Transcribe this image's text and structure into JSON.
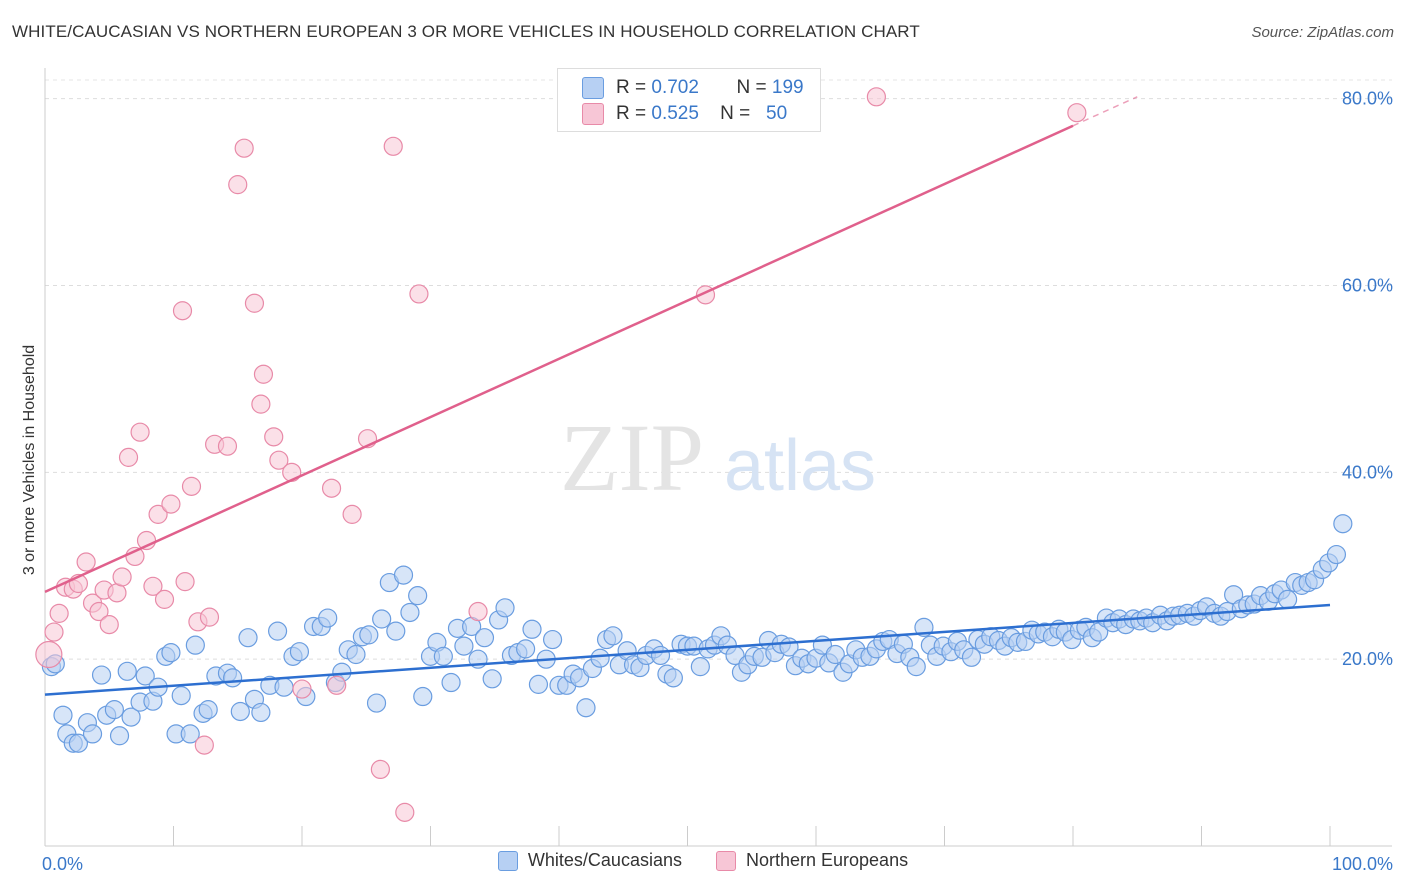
{
  "title": "WHITE/CAUCASIAN VS NORTHERN EUROPEAN 3 OR MORE VEHICLES IN HOUSEHOLD CORRELATION CHART",
  "source": "Source: ZipAtlas.com",
  "watermark": {
    "zip": "ZIP",
    "atlas": "atlas"
  },
  "colors": {
    "blue_fill": "#b7d0f3",
    "blue_stroke": "#6a9de0",
    "blue_line": "#2d6fd0",
    "pink_fill": "#f7c6d6",
    "pink_stroke": "#e88aa8",
    "pink_line": "#e0608c",
    "axis_text": "#3a78c9"
  },
  "stats": {
    "blue": {
      "r_label": "R =",
      "r": "0.702",
      "n_label": "N =",
      "n": "199"
    },
    "pink": {
      "r_label": "R =",
      "r": "0.525",
      "n_label": "N =",
      "n": "50"
    }
  },
  "legend": {
    "blue": "Whites/Caucasians",
    "pink": "Northern Europeans"
  },
  "chart_data": {
    "type": "scatter",
    "title": "WHITE/CAUCASIAN VS NORTHERN EUROPEAN 3 OR MORE VEHICLES IN HOUSEHOLD CORRELATION CHART",
    "xlabel": "",
    "ylabel": "3 or more Vehicles in Household",
    "xlim": [
      0,
      100
    ],
    "ylim": [
      0,
      82
    ],
    "x_ticks": [
      "0.0%",
      "100.0%"
    ],
    "y_ticks": [
      {
        "value": 20,
        "label": "20.0%"
      },
      {
        "value": 40,
        "label": "40.0%"
      },
      {
        "value": 60,
        "label": "60.0%"
      },
      {
        "value": 80,
        "label": "80.0%"
      }
    ],
    "grid": "horizontal dashed",
    "legend_position": "bottom",
    "series": [
      {
        "name": "Whites/Caucasians",
        "trend": {
          "x0": 0,
          "y0": 16.2,
          "x1": 100,
          "y1": 25.8
        },
        "points": [
          [
            0.5,
            19.2
          ],
          [
            0.8,
            19.5
          ],
          [
            1.4,
            14
          ],
          [
            1.7,
            12
          ],
          [
            2.2,
            11
          ],
          [
            2.6,
            11
          ],
          [
            3.3,
            13.2
          ],
          [
            3.7,
            12
          ],
          [
            4.4,
            18.3
          ],
          [
            4.8,
            14
          ],
          [
            5.4,
            14.6
          ],
          [
            5.8,
            11.8
          ],
          [
            6.4,
            18.7
          ],
          [
            6.7,
            13.8
          ],
          [
            7.4,
            15.4
          ],
          [
            7.8,
            18.2
          ],
          [
            8.4,
            15.5
          ],
          [
            8.8,
            17
          ],
          [
            9.4,
            20.3
          ],
          [
            9.8,
            20.7
          ],
          [
            10.2,
            12
          ],
          [
            10.6,
            16.1
          ],
          [
            11.3,
            12
          ],
          [
            11.7,
            21.5
          ],
          [
            12.3,
            14.2
          ],
          [
            12.7,
            14.6
          ],
          [
            13.3,
            18.2
          ],
          [
            14.2,
            18.5
          ],
          [
            14.6,
            18
          ],
          [
            15.2,
            14.4
          ],
          [
            15.8,
            22.3
          ],
          [
            16.3,
            15.7
          ],
          [
            16.8,
            14.3
          ],
          [
            17.5,
            17.2
          ],
          [
            18.1,
            23
          ],
          [
            18.6,
            17
          ],
          [
            19.3,
            20.3
          ],
          [
            19.8,
            20.8
          ],
          [
            20.3,
            16
          ],
          [
            20.9,
            23.5
          ],
          [
            21.5,
            23.5
          ],
          [
            22,
            24.4
          ],
          [
            22.6,
            17.5
          ],
          [
            23.1,
            18.6
          ],
          [
            23.6,
            21
          ],
          [
            24.2,
            20.5
          ],
          [
            24.7,
            22.4
          ],
          [
            25.2,
            22.6
          ],
          [
            25.8,
            15.3
          ],
          [
            26.2,
            24.3
          ],
          [
            26.8,
            28.2
          ],
          [
            27.3,
            23
          ],
          [
            27.9,
            29
          ],
          [
            28.4,
            25
          ],
          [
            29,
            26.8
          ],
          [
            29.4,
            16
          ],
          [
            30,
            20.3
          ],
          [
            30.5,
            21.8
          ],
          [
            31,
            20.3
          ],
          [
            31.6,
            17.5
          ],
          [
            32.1,
            23.3
          ],
          [
            32.6,
            21.4
          ],
          [
            33.2,
            23.5
          ],
          [
            33.7,
            20
          ],
          [
            34.2,
            22.3
          ],
          [
            34.8,
            17.9
          ],
          [
            35.3,
            24.2
          ],
          [
            35.8,
            25.5
          ],
          [
            36.3,
            20.4
          ],
          [
            36.8,
            20.7
          ],
          [
            37.4,
            21.1
          ],
          [
            37.9,
            23.2
          ],
          [
            38.4,
            17.3
          ],
          [
            39,
            20
          ],
          [
            39.5,
            22.1
          ],
          [
            40,
            17.2
          ],
          [
            40.6,
            17.2
          ],
          [
            41.1,
            18.4
          ],
          [
            41.6,
            18
          ],
          [
            42.1,
            14.8
          ],
          [
            42.6,
            19
          ],
          [
            43.2,
            20.1
          ],
          [
            43.7,
            22.1
          ],
          [
            44.2,
            22.5
          ],
          [
            44.7,
            19.4
          ],
          [
            45.3,
            20.9
          ],
          [
            45.8,
            19.4
          ],
          [
            46.3,
            19.1
          ],
          [
            46.8,
            20.4
          ],
          [
            47.4,
            21.1
          ],
          [
            47.9,
            20.4
          ],
          [
            48.4,
            18.4
          ],
          [
            48.9,
            18
          ],
          [
            49.5,
            21.6
          ],
          [
            50,
            21.4
          ],
          [
            50.5,
            21.4
          ],
          [
            51,
            19.2
          ],
          [
            51.6,
            21.1
          ],
          [
            52.1,
            21.5
          ],
          [
            52.6,
            22.5
          ],
          [
            53.1,
            21.5
          ],
          [
            53.7,
            20.4
          ],
          [
            54.2,
            18.6
          ],
          [
            54.7,
            19.4
          ],
          [
            55.2,
            20.3
          ],
          [
            55.8,
            20.2
          ],
          [
            56.3,
            22
          ],
          [
            56.8,
            20.7
          ],
          [
            57.3,
            21.6
          ],
          [
            57.9,
            21.3
          ],
          [
            58.4,
            19.3
          ],
          [
            58.9,
            20.1
          ],
          [
            59.4,
            19.5
          ],
          [
            60,
            20.1
          ],
          [
            60.5,
            21.5
          ],
          [
            61,
            19.6
          ],
          [
            61.5,
            20.5
          ],
          [
            62.1,
            18.6
          ],
          [
            62.6,
            19.5
          ],
          [
            63.1,
            21
          ],
          [
            63.6,
            20.2
          ],
          [
            64.2,
            20.3
          ],
          [
            64.7,
            21.1
          ],
          [
            65.2,
            21.9
          ],
          [
            65.7,
            22.1
          ],
          [
            66.3,
            20.6
          ],
          [
            66.8,
            21.6
          ],
          [
            67.3,
            20.2
          ],
          [
            67.8,
            19.2
          ],
          [
            68.4,
            23.4
          ],
          [
            68.9,
            21.5
          ],
          [
            69.4,
            20.3
          ],
          [
            69.9,
            21.4
          ],
          [
            70.5,
            20.8
          ],
          [
            71,
            21.9
          ],
          [
            71.5,
            21
          ],
          [
            72.1,
            20.2
          ],
          [
            72.6,
            22.1
          ],
          [
            73.1,
            21.6
          ],
          [
            73.6,
            22.4
          ],
          [
            74.2,
            22
          ],
          [
            74.7,
            21.4
          ],
          [
            75.2,
            22.3
          ],
          [
            75.7,
            21.8
          ],
          [
            76.3,
            21.9
          ],
          [
            76.8,
            23.1
          ],
          [
            77.3,
            22.7
          ],
          [
            77.8,
            22.9
          ],
          [
            78.4,
            22.4
          ],
          [
            78.9,
            23.2
          ],
          [
            79.4,
            22.9
          ],
          [
            79.9,
            22.1
          ],
          [
            80.5,
            23.1
          ],
          [
            81,
            23.4
          ],
          [
            81.5,
            22.3
          ],
          [
            82,
            22.9
          ],
          [
            82.6,
            24.4
          ],
          [
            83.1,
            23.9
          ],
          [
            83.6,
            24.3
          ],
          [
            84.1,
            23.7
          ],
          [
            84.7,
            24.3
          ],
          [
            85.2,
            24.1
          ],
          [
            85.7,
            24.4
          ],
          [
            86.2,
            23.9
          ],
          [
            86.8,
            24.7
          ],
          [
            87.3,
            24.1
          ],
          [
            87.8,
            24.6
          ],
          [
            88.3,
            24.7
          ],
          [
            88.9,
            24.9
          ],
          [
            89.4,
            24.6
          ],
          [
            89.9,
            25.2
          ],
          [
            90.4,
            25.6
          ],
          [
            91,
            24.9
          ],
          [
            91.5,
            24.6
          ],
          [
            92,
            25.1
          ],
          [
            92.5,
            26.9
          ],
          [
            93.1,
            25.4
          ],
          [
            93.6,
            25.8
          ],
          [
            94.1,
            25.9
          ],
          [
            94.6,
            26.8
          ],
          [
            95.2,
            26.2
          ],
          [
            95.7,
            27
          ],
          [
            96.2,
            27.4
          ],
          [
            96.7,
            26.4
          ],
          [
            97.3,
            28.2
          ],
          [
            97.8,
            27.9
          ],
          [
            98.3,
            28.2
          ],
          [
            98.8,
            28.5
          ],
          [
            99.4,
            29.6
          ],
          [
            99.9,
            30.3
          ],
          [
            100.5,
            31.2
          ],
          [
            101,
            34.5
          ]
        ]
      },
      {
        "name": "Northern Europeans",
        "trend": {
          "x0": 0,
          "y0": 27.2,
          "x1": 80,
          "y1": 77.1
        },
        "trend_dashed_to": {
          "x": 85,
          "y": 80.2
        },
        "points": [
          [
            0.3,
            20.5
          ],
          [
            0.7,
            22.9
          ],
          [
            1.1,
            24.9
          ],
          [
            1.6,
            27.7
          ],
          [
            2.2,
            27.5
          ],
          [
            2.6,
            28.1
          ],
          [
            3.2,
            30.4
          ],
          [
            3.7,
            26
          ],
          [
            4.2,
            25.1
          ],
          [
            4.6,
            27.4
          ],
          [
            5,
            23.7
          ],
          [
            5.6,
            27.1
          ],
          [
            6,
            28.8
          ],
          [
            6.5,
            41.6
          ],
          [
            7,
            31
          ],
          [
            7.4,
            44.3
          ],
          [
            7.9,
            32.7
          ],
          [
            8.4,
            27.8
          ],
          [
            8.8,
            35.5
          ],
          [
            9.3,
            26.4
          ],
          [
            9.8,
            36.6
          ],
          [
            10.7,
            57.3
          ],
          [
            10.9,
            28.3
          ],
          [
            11.4,
            38.5
          ],
          [
            11.9,
            24
          ],
          [
            12.4,
            10.8
          ],
          [
            12.8,
            24.5
          ],
          [
            13.2,
            43
          ],
          [
            14.2,
            42.8
          ],
          [
            15,
            70.8
          ],
          [
            15.5,
            74.7
          ],
          [
            16.3,
            58.1
          ],
          [
            17,
            50.5
          ],
          [
            16.8,
            47.3
          ],
          [
            17.8,
            43.8
          ],
          [
            18.2,
            41.3
          ],
          [
            19.2,
            40
          ],
          [
            20,
            16.8
          ],
          [
            22.3,
            38.3
          ],
          [
            22.7,
            17.2
          ],
          [
            23.9,
            35.5
          ],
          [
            25.1,
            43.6
          ],
          [
            26.1,
            8.2
          ],
          [
            27.1,
            74.9
          ],
          [
            28,
            3.6
          ],
          [
            29.1,
            59.1
          ],
          [
            33.7,
            25.1
          ],
          [
            51.4,
            59
          ],
          [
            64.7,
            80.2
          ],
          [
            80.3,
            78.5
          ]
        ]
      }
    ]
  }
}
